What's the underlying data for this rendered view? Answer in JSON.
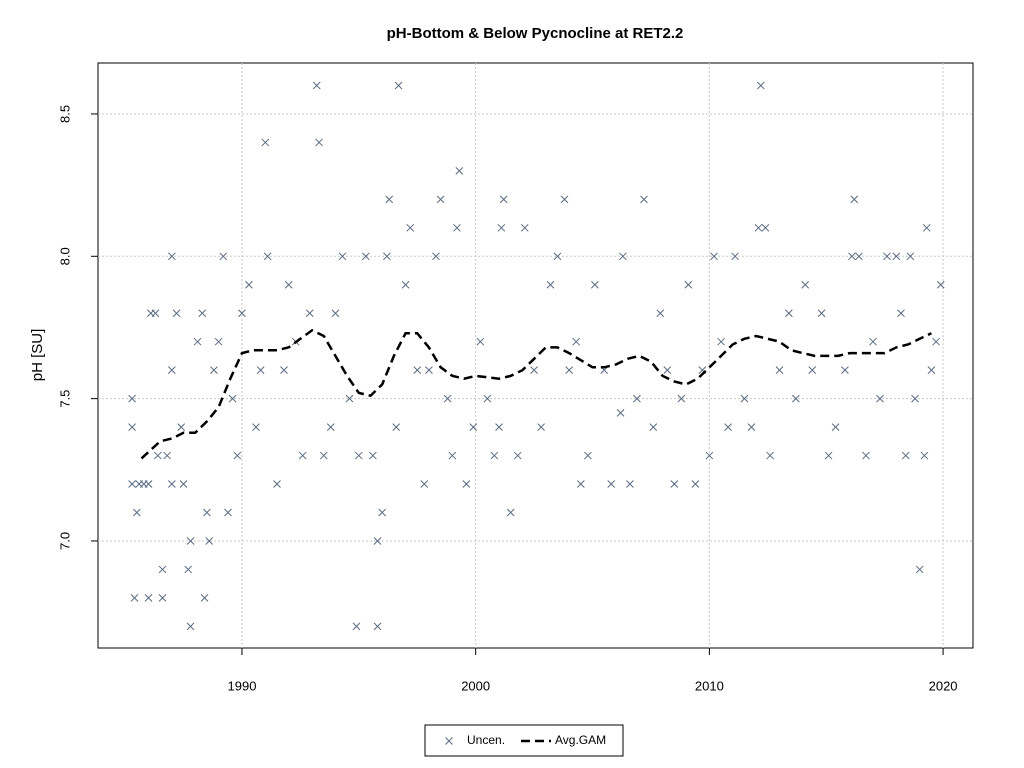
{
  "chart_data": {
    "type": "scatter",
    "title": "pH-Bottom & Below Pycnocline at RET2.2",
    "y_label": "pH [SU]",
    "xlim": [
      1983.84,
      2021.28
    ],
    "xticks": [
      1990,
      2000,
      2010,
      2020
    ],
    "ylim": [
      6.624,
      8.679
    ],
    "yticks": [
      {
        "value": 7,
        "label": "7.0"
      },
      7.5,
      {
        "value": 8,
        "label": "8.0"
      },
      8.5
    ],
    "grid": true,
    "legend": "bottom",
    "series": [
      {
        "name": "Uncen.",
        "type": "scatter",
        "marker": "x",
        "color": "#5b6b82",
        "x": [
          1985.3,
          1985.3,
          1985.3,
          1985.4,
          1985.5,
          1985.6,
          1985.8,
          1986,
          1986,
          1986.1,
          1986.3,
          1986.4,
          1986.6,
          1986.6,
          1986.8,
          1987,
          1987,
          1987,
          1987.2,
          1987.4,
          1987.5,
          1987.7,
          1987.8,
          1987.8,
          1988.1,
          1988.3,
          1988.4,
          1988.5,
          1988.6,
          1988.8,
          1989,
          1989.2,
          1989.4,
          1989.6,
          1989.8,
          1990,
          1990.3,
          1990.6,
          1990.8,
          1991,
          1991.1,
          1991.5,
          1991.8,
          1992,
          1992.3,
          1992.6,
          1992.9,
          1993.2,
          1993.3,
          1993.5,
          1993.8,
          1994,
          1994.3,
          1994.6,
          1994.9,
          1995,
          1995.3,
          1995.6,
          1995.8,
          1995.8,
          1996,
          1996.2,
          1996.3,
          1996.6,
          1996.7,
          1997,
          1997.2,
          1997.5,
          1997.8,
          1998,
          1998.3,
          1998.5,
          1998.8,
          1999,
          1999.2,
          1999.3,
          1999.6,
          1999.9,
          2000.2,
          2000.5,
          2000.8,
          2001,
          2001.1,
          2001.2,
          2001.5,
          2001.8,
          2002.1,
          2002.5,
          2002.8,
          2003.2,
          2003.5,
          2003.8,
          2004,
          2004.3,
          2004.5,
          2004.8,
          2005.1,
          2005.5,
          2005.8,
          2006.2,
          2006.3,
          2006.6,
          2006.9,
          2007.2,
          2007.6,
          2007.9,
          2008.2,
          2008.5,
          2008.8,
          2009.1,
          2009.4,
          2009.7,
          2010,
          2010.2,
          2010.5,
          2010.8,
          2011.1,
          2011.5,
          2011.8,
          2012.1,
          2012.2,
          2012.4,
          2012.6,
          2013,
          2013.4,
          2013.7,
          2014.1,
          2014.4,
          2014.8,
          2015.1,
          2015.4,
          2015.8,
          2016.1,
          2016.2,
          2016.4,
          2016.7,
          2017,
          2017.3,
          2017.6,
          2018,
          2018.2,
          2018.4,
          2018.6,
          2018.8,
          2019,
          2019.2,
          2019.3,
          2019.5,
          2019.7,
          2019.9
        ],
        "values": [
          7.5,
          7.4,
          7.2,
          6.8,
          7.1,
          7.2,
          7.2,
          6.8,
          7.2,
          7.8,
          7.8,
          7.3,
          6.9,
          6.8,
          7.3,
          8.0,
          7.6,
          7.2,
          7.8,
          7.4,
          7.2,
          6.9,
          6.7,
          7.0,
          7.7,
          7.8,
          6.8,
          7.1,
          7.0,
          7.6,
          7.7,
          8.0,
          7.1,
          7.5,
          7.3,
          7.8,
          7.9,
          7.4,
          7.6,
          8.4,
          8.0,
          7.2,
          7.6,
          7.9,
          7.7,
          7.3,
          7.8,
          8.6,
          8.4,
          7.3,
          7.4,
          7.8,
          8.0,
          7.5,
          6.7,
          7.3,
          8.0,
          7.3,
          6.7,
          7.0,
          7.1,
          8.0,
          8.2,
          7.4,
          8.6,
          7.9,
          8.1,
          7.6,
          7.2,
          7.6,
          8.0,
          8.2,
          7.5,
          7.3,
          8.1,
          8.3,
          7.2,
          7.4,
          7.7,
          7.5,
          7.3,
          7.4,
          8.1,
          8.2,
          7.1,
          7.3,
          8.1,
          7.6,
          7.4,
          7.9,
          8.0,
          8.2,
          7.6,
          7.7,
          7.2,
          7.3,
          7.9,
          7.6,
          7.2,
          7.45,
          8.0,
          7.2,
          7.5,
          8.2,
          7.4,
          7.8,
          7.6,
          7.2,
          7.5,
          7.9,
          7.2,
          7.6,
          7.3,
          8.0,
          7.7,
          7.4,
          8.0,
          7.5,
          7.4,
          8.1,
          8.6,
          8.1,
          7.3,
          7.6,
          7.8,
          7.5,
          7.9,
          7.6,
          7.8,
          7.3,
          7.4,
          7.6,
          8.0,
          8.2,
          8.0,
          7.3,
          7.7,
          7.5,
          8.0,
          8.0,
          7.8,
          7.3,
          8.0,
          7.5,
          6.9,
          7.3,
          8.1,
          7.6,
          7.7,
          7.9
        ]
      },
      {
        "name": "Avg.GAM",
        "type": "line",
        "dash": true,
        "color": "#000000",
        "x": [
          1985.7,
          1986.5,
          1987,
          1987.5,
          1988,
          1988.5,
          1989,
          1989.5,
          1990,
          1990.5,
          1991,
          1991.5,
          1992,
          1992.5,
          1993,
          1993.5,
          1994,
          1994.5,
          1995,
          1995.5,
          1996,
          1996.5,
          1997,
          1997.5,
          1998,
          1998.5,
          1999,
          1999.5,
          2000,
          2001,
          2001.5,
          2002,
          2002.5,
          2003,
          2003.5,
          2004,
          2005,
          2005.5,
          2006,
          2006.5,
          2007,
          2007.5,
          2008,
          2008.5,
          2009,
          2009.5,
          2010,
          2010.5,
          2011,
          2011.5,
          2012,
          2012.5,
          2013,
          2013.5,
          2014,
          2014.5,
          2015,
          2015.5,
          2016,
          2016.5,
          2017,
          2017.5,
          2018,
          2018.5,
          2019,
          2019.5
        ],
        "values": [
          7.29,
          7.35,
          7.36,
          7.38,
          7.38,
          7.42,
          7.47,
          7.57,
          7.66,
          7.67,
          7.67,
          7.67,
          7.68,
          7.71,
          7.74,
          7.72,
          7.65,
          7.58,
          7.52,
          7.51,
          7.55,
          7.65,
          7.73,
          7.73,
          7.68,
          7.61,
          7.58,
          7.57,
          7.58,
          7.57,
          7.58,
          7.6,
          7.64,
          7.68,
          7.68,
          7.66,
          7.61,
          7.61,
          7.62,
          7.64,
          7.65,
          7.63,
          7.58,
          7.56,
          7.55,
          7.57,
          7.61,
          7.65,
          7.69,
          7.71,
          7.72,
          7.71,
          7.7,
          7.67,
          7.66,
          7.65,
          7.65,
          7.65,
          7.66,
          7.66,
          7.66,
          7.66,
          7.68,
          7.69,
          7.71,
          7.73
        ]
      }
    ]
  }
}
